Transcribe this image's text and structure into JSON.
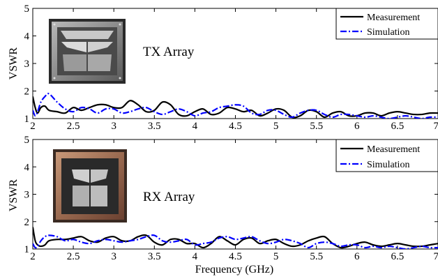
{
  "chart_data": [
    {
      "type": "line",
      "title": "",
      "xlabel": "",
      "ylabel": "VSWR",
      "xlim": [
        2,
        7
      ],
      "ylim": [
        1,
        5
      ],
      "xticks": [
        2,
        2.5,
        3,
        3.5,
        4,
        4.5,
        5,
        5.5,
        6,
        6.5,
        7
      ],
      "xtick_labels": [
        "2",
        "2.5",
        "3",
        "3.5",
        "4",
        "4.5",
        "5",
        "5.5",
        "6",
        "6.5",
        "7"
      ],
      "yticks": [
        1,
        2,
        3,
        4,
        5
      ],
      "ytick_labels": [
        "1",
        "2",
        "3",
        "4",
        "5"
      ],
      "legend_position": "top-right",
      "grid": false,
      "annotation": "TX Array",
      "photo": "tx-array-photo",
      "series": [
        {
          "name": "Measurement",
          "color": "#000000",
          "style": "solid",
          "x": [
            2.0,
            2.03,
            2.06,
            2.1,
            2.15,
            2.2,
            2.3,
            2.4,
            2.5,
            2.6,
            2.7,
            2.8,
            2.9,
            3.0,
            3.1,
            3.2,
            3.3,
            3.4,
            3.5,
            3.6,
            3.7,
            3.8,
            3.9,
            4.0,
            4.1,
            4.2,
            4.3,
            4.4,
            4.5,
            4.6,
            4.7,
            4.8,
            4.9,
            5.0,
            5.1,
            5.2,
            5.3,
            5.4,
            5.5,
            5.6,
            5.7,
            5.8,
            5.9,
            6.0,
            6.1,
            6.2,
            6.3,
            6.4,
            6.5,
            6.6,
            6.7,
            6.8,
            6.9,
            7.0
          ],
          "y": [
            1.8,
            1.4,
            1.2,
            1.4,
            1.45,
            1.3,
            1.25,
            1.2,
            1.4,
            1.3,
            1.4,
            1.5,
            1.5,
            1.4,
            1.4,
            1.65,
            1.5,
            1.25,
            1.3,
            1.6,
            1.5,
            1.15,
            1.1,
            1.25,
            1.35,
            1.15,
            1.2,
            1.4,
            1.35,
            1.25,
            1.3,
            1.1,
            1.2,
            1.35,
            1.3,
            1.05,
            1.1,
            1.3,
            1.25,
            1.05,
            1.2,
            1.25,
            1.1,
            1.1,
            1.2,
            1.2,
            1.1,
            1.2,
            1.25,
            1.2,
            1.15,
            1.15,
            1.2,
            1.2
          ]
        },
        {
          "name": "Simulation",
          "color": "#0000ff",
          "style": "dashdot",
          "x": [
            2.0,
            2.03,
            2.06,
            2.1,
            2.15,
            2.2,
            2.3,
            2.4,
            2.5,
            2.6,
            2.7,
            2.8,
            2.9,
            3.0,
            3.1,
            3.2,
            3.3,
            3.4,
            3.5,
            3.6,
            3.7,
            3.8,
            3.9,
            4.0,
            4.1,
            4.2,
            4.3,
            4.4,
            4.5,
            4.6,
            4.7,
            4.8,
            4.9,
            5.0,
            5.1,
            5.2,
            5.3,
            5.4,
            5.5,
            5.6,
            5.7,
            5.8,
            5.9,
            6.0,
            6.1,
            6.2,
            6.3,
            6.4,
            6.5,
            6.6,
            6.7,
            6.8,
            6.9,
            7.0
          ],
          "y": [
            1.3,
            1.1,
            1.25,
            1.6,
            1.8,
            1.9,
            1.6,
            1.35,
            1.25,
            1.4,
            1.35,
            1.2,
            1.35,
            1.35,
            1.2,
            1.25,
            1.35,
            1.4,
            1.25,
            1.15,
            1.25,
            1.35,
            1.25,
            1.1,
            1.2,
            1.25,
            1.4,
            1.45,
            1.5,
            1.45,
            1.2,
            1.15,
            1.3,
            1.3,
            1.15,
            1.05,
            1.2,
            1.3,
            1.3,
            1.15,
            1.05,
            1.15,
            1.15,
            1.1,
            1.05,
            1.1,
            1.05,
            1.0,
            1.05,
            1.1,
            1.05,
            1.0,
            1.05,
            1.05
          ]
        }
      ]
    },
    {
      "type": "line",
      "title": "",
      "xlabel": "Frequency (GHz)",
      "ylabel": "VSWR",
      "xlim": [
        2,
        7
      ],
      "ylim": [
        1,
        5
      ],
      "xticks": [
        2,
        2.5,
        3,
        3.5,
        4,
        4.5,
        5,
        5.5,
        6,
        6.5,
        7
      ],
      "xtick_labels": [
        "2",
        "2.5",
        "3",
        "3.5",
        "4",
        "4.5",
        "5",
        "5.5",
        "6",
        "6.5",
        "7"
      ],
      "yticks": [
        1,
        2,
        3,
        4,
        5
      ],
      "ytick_labels": [
        "1",
        "2",
        "3",
        "4",
        "5"
      ],
      "legend_position": "top-right",
      "grid": false,
      "annotation": "RX Array",
      "photo": "rx-array-photo",
      "series": [
        {
          "name": "Measurement",
          "color": "#000000",
          "style": "solid",
          "x": [
            2.0,
            2.03,
            2.06,
            2.1,
            2.15,
            2.2,
            2.3,
            2.4,
            2.5,
            2.6,
            2.7,
            2.8,
            2.9,
            3.0,
            3.1,
            3.2,
            3.3,
            3.4,
            3.5,
            3.6,
            3.7,
            3.8,
            3.9,
            4.0,
            4.1,
            4.2,
            4.3,
            4.4,
            4.5,
            4.6,
            4.7,
            4.8,
            4.9,
            5.0,
            5.1,
            5.2,
            5.3,
            5.4,
            5.5,
            5.6,
            5.7,
            5.8,
            5.9,
            6.0,
            6.1,
            6.2,
            6.3,
            6.4,
            6.5,
            6.6,
            6.7,
            6.8,
            6.9,
            7.0
          ],
          "y": [
            1.8,
            1.3,
            1.15,
            1.1,
            1.15,
            1.3,
            1.35,
            1.35,
            1.4,
            1.45,
            1.3,
            1.25,
            1.4,
            1.45,
            1.3,
            1.3,
            1.45,
            1.5,
            1.25,
            1.15,
            1.35,
            1.35,
            1.2,
            1.2,
            1.05,
            1.2,
            1.45,
            1.3,
            1.15,
            1.35,
            1.4,
            1.2,
            1.3,
            1.35,
            1.2,
            1.1,
            1.15,
            1.3,
            1.4,
            1.45,
            1.2,
            1.05,
            1.1,
            1.2,
            1.25,
            1.15,
            1.1,
            1.15,
            1.2,
            1.15,
            1.1,
            1.1,
            1.15,
            1.2
          ]
        },
        {
          "name": "Simulation",
          "color": "#0000ff",
          "style": "dashdot",
          "x": [
            2.0,
            2.03,
            2.06,
            2.1,
            2.15,
            2.2,
            2.3,
            2.4,
            2.5,
            2.6,
            2.7,
            2.8,
            2.9,
            3.0,
            3.1,
            3.2,
            3.3,
            3.4,
            3.5,
            3.6,
            3.7,
            3.8,
            3.9,
            4.0,
            4.1,
            4.2,
            4.3,
            4.4,
            4.5,
            4.6,
            4.7,
            4.8,
            4.9,
            5.0,
            5.1,
            5.2,
            5.3,
            5.4,
            5.5,
            5.6,
            5.7,
            5.8,
            5.9,
            6.0,
            6.1,
            6.2,
            6.3,
            6.4,
            6.5,
            6.6,
            6.7,
            6.8,
            6.9,
            7.0
          ],
          "y": [
            1.2,
            1.05,
            1.1,
            1.3,
            1.45,
            1.5,
            1.45,
            1.3,
            1.35,
            1.25,
            1.2,
            1.3,
            1.35,
            1.3,
            1.25,
            1.3,
            1.35,
            1.45,
            1.5,
            1.3,
            1.25,
            1.3,
            1.35,
            1.15,
            1.2,
            1.25,
            1.4,
            1.45,
            1.35,
            1.4,
            1.45,
            1.3,
            1.2,
            1.25,
            1.35,
            1.3,
            1.2,
            1.05,
            1.2,
            1.25,
            1.2,
            1.1,
            1.15,
            1.15,
            1.05,
            1.1,
            1.05,
            1.1,
            1.05,
            1.0,
            1.05,
            1.1,
            1.05,
            1.05
          ]
        }
      ]
    }
  ]
}
